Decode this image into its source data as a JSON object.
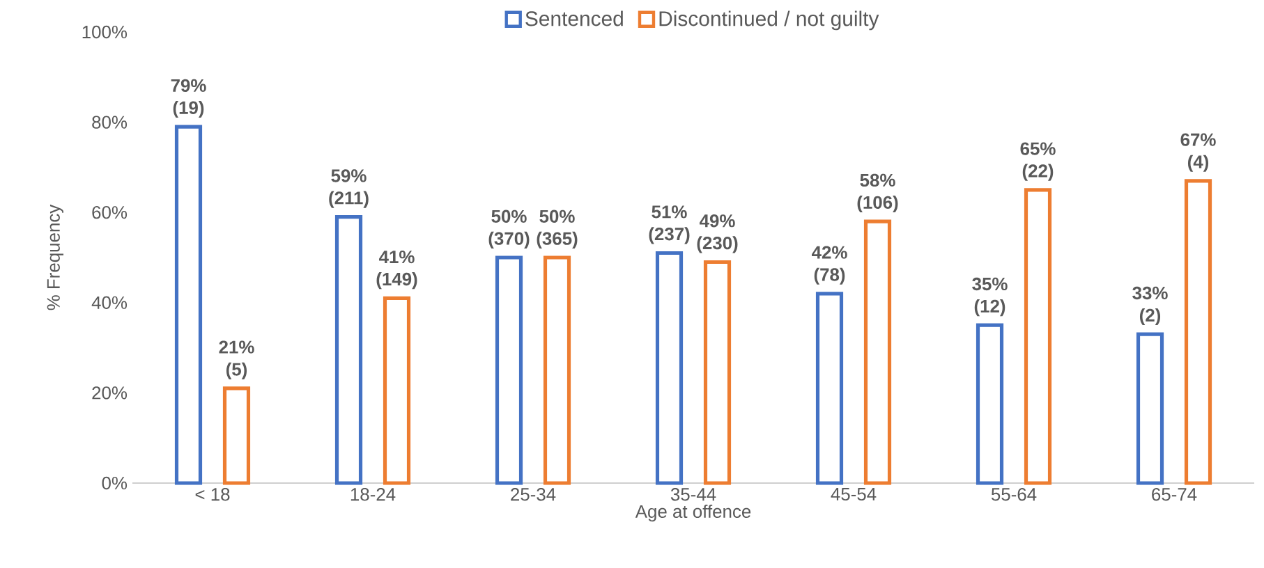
{
  "chart_data": {
    "type": "bar",
    "xlabel": "Age at offence",
    "ylabel": "% Frequency",
    "categories": [
      "< 18",
      "18-24",
      "25-34",
      "35-44",
      "45-54",
      "55-64",
      "65-74"
    ],
    "series": [
      {
        "name": "Sentenced",
        "color": "#4472c4",
        "values": [
          79,
          59,
          50,
          51,
          42,
          35,
          33
        ],
        "value_labels": [
          "79% (19)",
          "59% (211)",
          "50% (370)",
          "51% (237)",
          "42% (78)",
          "35% (12)",
          "33% (2)"
        ]
      },
      {
        "name": "Discontinued / not guilty",
        "color": "#ed7d31",
        "values": [
          21,
          41,
          50,
          49,
          58,
          65,
          67
        ],
        "value_labels": [
          "21% (5)",
          "41% (149)",
          "50% (365)",
          "49% (230)",
          "58% (106)",
          "65% (22)",
          "67% (4)"
        ]
      }
    ],
    "ylim": [
      0,
      100
    ],
    "yticks": [
      {
        "value": 0,
        "label": "0%"
      },
      {
        "value": 20,
        "label": "20%"
      },
      {
        "value": 40,
        "label": "40%"
      },
      {
        "value": 60,
        "label": "60%"
      },
      {
        "value": 80,
        "label": "80%"
      },
      {
        "value": 100,
        "label": "100%"
      }
    ],
    "legend": "top",
    "grid": false
  }
}
